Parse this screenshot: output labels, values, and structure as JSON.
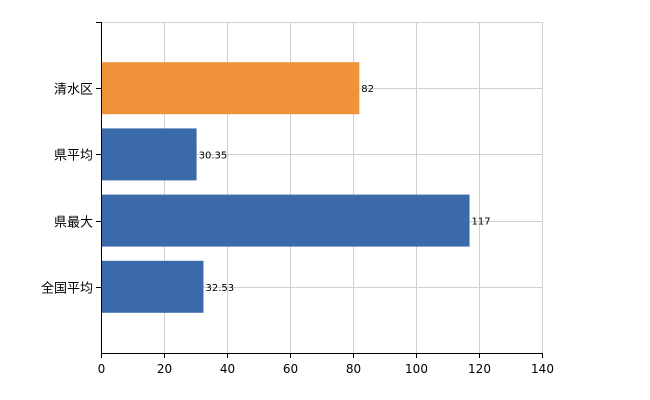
{
  "chart_data": {
    "type": "bar",
    "orientation": "horizontal",
    "categories": [
      "清水区",
      "県平均",
      "県最大",
      "全国平均"
    ],
    "values": [
      82,
      30.35,
      117,
      32.53
    ],
    "value_labels": [
      "82",
      "30.35",
      "117",
      "32.53"
    ],
    "highlight_category": "清水区",
    "colors": {
      "highlight": "#F0923A",
      "default": "#3A6AAA",
      "grid": "#D0D0D0",
      "axis": "#000000"
    },
    "title": "",
    "xlabel": "",
    "ylabel": "",
    "xlim": [
      0,
      140
    ],
    "xticks": [
      0,
      20,
      40,
      60,
      80,
      100,
      120,
      140
    ],
    "xtick_labels": [
      "0",
      "20",
      "40",
      "60",
      "80",
      "100",
      "120",
      "140"
    ],
    "grid": true,
    "legend": false
  }
}
